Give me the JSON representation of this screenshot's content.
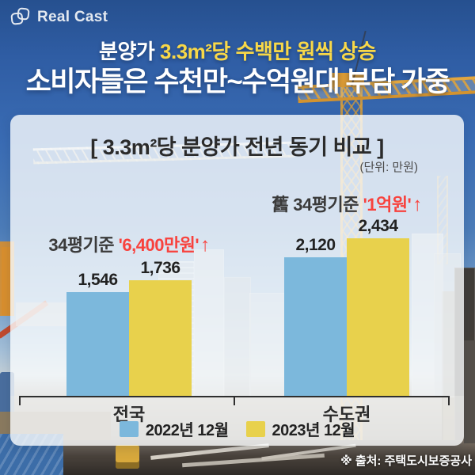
{
  "logo": {
    "text": "Real Cast"
  },
  "header": {
    "line1_prefix": "분양가 ",
    "line1_highlight": "3.3m²당 수백만 원씩 상승",
    "line2": "소비자들은 수천만~수억원대 부담 가중"
  },
  "chart_card": {
    "title": "[ 3.3m²당 분양가 전년 동기 비교 ]",
    "unit": "(단위: 만원)",
    "annotations": [
      {
        "prefix": "34평기준 ",
        "highlight": "'6,400만원'",
        "arrow": "↑"
      },
      {
        "prefix": "舊 34평기준 ",
        "highlight": "'1억원'",
        "arrow": "↑"
      }
    ]
  },
  "chart_data": {
    "type": "bar",
    "title": "[ 3.3m²당 분양가 전년 동기 비교 ]",
    "unit": "만원",
    "categories": [
      "전국",
      "수도권"
    ],
    "series": [
      {
        "name": "2022년 12월",
        "color": "#7cb8dc",
        "values": [
          1546,
          2120
        ]
      },
      {
        "name": "2023년 12월",
        "color": "#e8d14c",
        "values": [
          1736,
          2434
        ]
      }
    ],
    "value_labels": [
      [
        "1,546",
        "2,120"
      ],
      [
        "1,736",
        "2,434"
      ]
    ],
    "ylim": [
      0,
      2600
    ],
    "grid": false,
    "legend_position": "bottom"
  },
  "footer": {
    "source": "※ 출처: 주택도시보증공사"
  },
  "colors": {
    "headline_highlight": "#f8d848",
    "annotation_red": "#f8423d",
    "bar_2022": "#7cb8dc",
    "bar_2023": "#e8d14c",
    "axis": "#2f2f2f"
  }
}
